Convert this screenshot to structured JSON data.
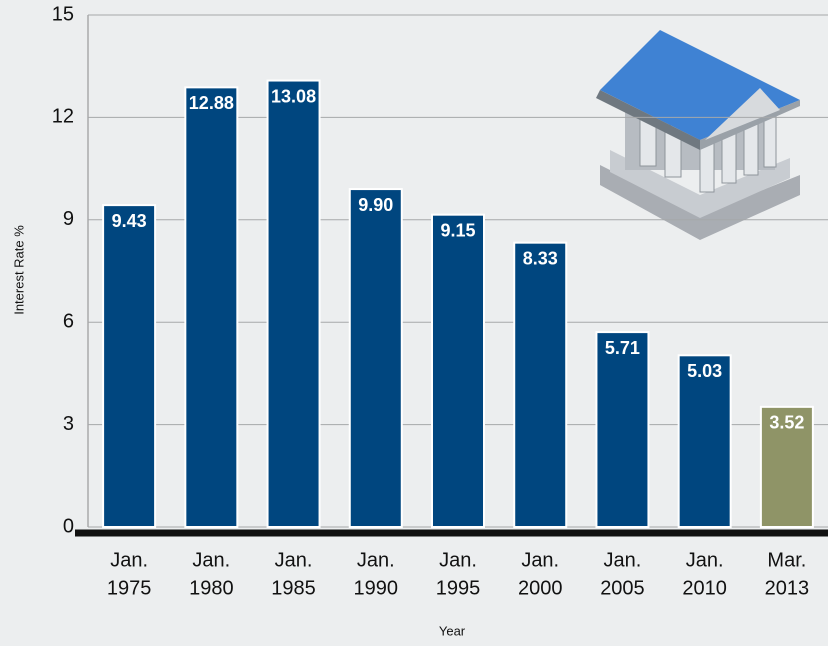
{
  "chart_data": {
    "type": "bar",
    "categories": [
      [
        "Jan.",
        "1975"
      ],
      [
        "Jan.",
        "1980"
      ],
      [
        "Jan.",
        "1985"
      ],
      [
        "Jan.",
        "1990"
      ],
      [
        "Jan.",
        "1995"
      ],
      [
        "Jan.",
        "2000"
      ],
      [
        "Jan.",
        "2005"
      ],
      [
        "Jan.",
        "2010"
      ],
      [
        "Mar.",
        "2013"
      ]
    ],
    "values": [
      9.43,
      12.88,
      13.08,
      9.9,
      9.15,
      8.33,
      5.71,
      5.03,
      3.52
    ],
    "value_labels": [
      "9.43",
      "12.88",
      "13.08",
      "9.90",
      "9.15",
      "8.33",
      "5.71",
      "5.03",
      "3.52"
    ],
    "colors": [
      "#00467f",
      "#00467f",
      "#00467f",
      "#00467f",
      "#00467f",
      "#00467f",
      "#00467f",
      "#00467f",
      "#8f9467"
    ],
    "ylim": [
      0,
      15
    ],
    "yticks": [
      0,
      3,
      6,
      9,
      12,
      15
    ],
    "grid": true,
    "xlabel": "Year",
    "ylabel": "Interest Rate %"
  }
}
